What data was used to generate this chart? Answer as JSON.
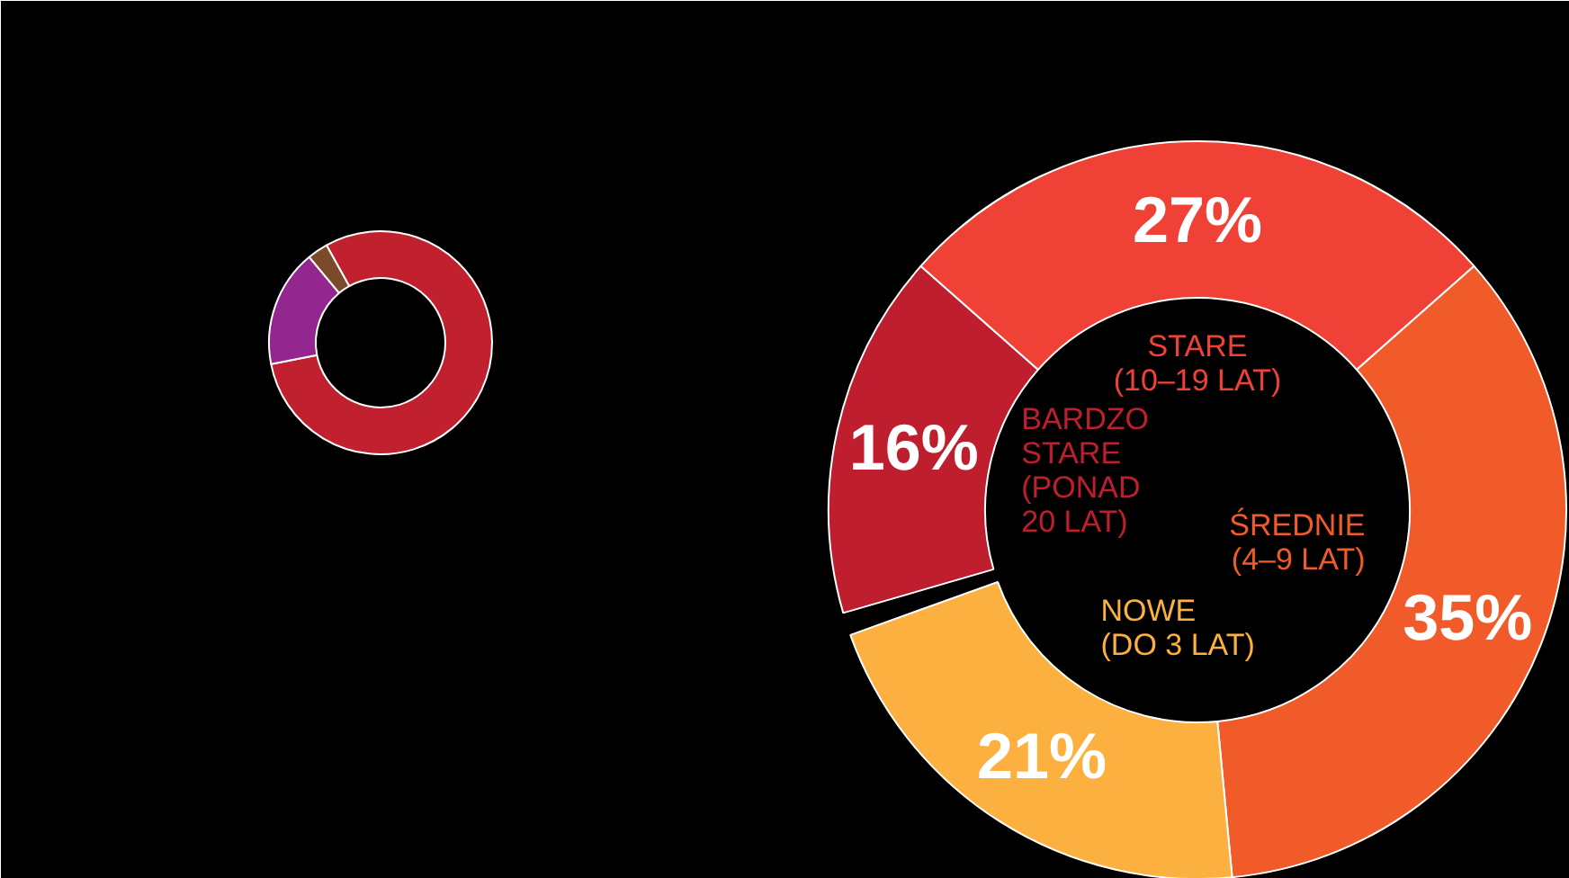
{
  "chart_data": [
    {
      "type": "donut",
      "categories": [
        null,
        null,
        null
      ],
      "values": [
        80,
        17,
        3
      ],
      "colors": [
        "#c1202f",
        "#93278f",
        "#7b4a2b"
      ]
    },
    {
      "type": "donut",
      "categories": [
        "BARDZO\nSTARE\n(PONAD\n20 LAT)",
        "STARE\n(10–19 LAT)",
        "ŚREDNIE\n(4–9 LAT)",
        "NOWE\n(DO 3 LAT)"
      ],
      "values": [
        16,
        27,
        35,
        21
      ],
      "value_labels": [
        "16%",
        "27%",
        "35%",
        "21%"
      ],
      "colors": [
        "#be1e2d",
        "#ef4136",
        "#f15a29",
        "#fbb040"
      ]
    }
  ]
}
